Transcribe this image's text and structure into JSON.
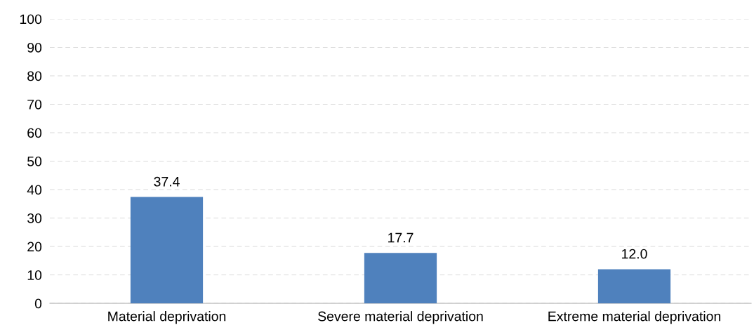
{
  "chart_data": {
    "type": "bar",
    "categories": [
      "Material deprivation",
      "Severe material deprivation",
      "Extreme material deprivation"
    ],
    "values": [
      37.4,
      17.7,
      12.0
    ],
    "value_labels": [
      "37.4",
      "17.7",
      "12.0"
    ],
    "color": "#4f81bd",
    "ylim": [
      0,
      100
    ],
    "yticks": [
      0,
      10,
      20,
      30,
      40,
      50,
      60,
      70,
      80,
      90,
      100
    ],
    "grid": "y"
  }
}
